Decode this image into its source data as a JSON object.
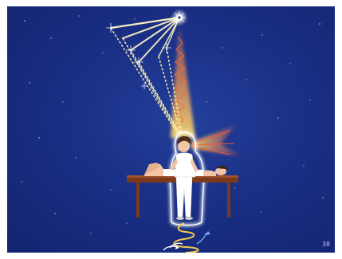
{
  "slide": {
    "page_number": "38",
    "background_color": "#1a2f86",
    "beam_color": "#fff3a6",
    "warm_glow_color": "#ff8a3d",
    "aura_color": "#ffffff"
  }
}
